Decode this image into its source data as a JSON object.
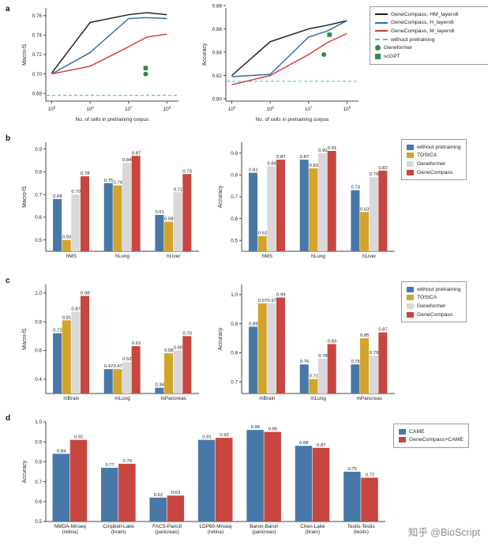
{
  "watermark": "知乎 @BioScript",
  "panel_letters": [
    "a",
    "b",
    "c",
    "d"
  ],
  "chart_data": [
    {
      "panel": "a",
      "type": "line",
      "ylabel": "Macro-f1",
      "xlabel": "No. of cells in pretraining corpus",
      "xscale": "log",
      "xlim": [
        70000,
        200000000
      ],
      "xtick_exponents": [
        5,
        6,
        7,
        8
      ],
      "ylim": [
        0.672,
        0.768
      ],
      "yticks": [
        0.68,
        0.7,
        0.72,
        0.74,
        0.76
      ],
      "ydec": 2,
      "series": [
        {
          "name": "GeneCompass, HM_layers6",
          "color": "#1a1a1a",
          "x": [
            100000,
            1000000,
            10000000,
            30000000,
            100000000
          ],
          "y": [
            0.701,
            0.753,
            0.761,
            0.763,
            0.761
          ]
        },
        {
          "name": "GeneCompass, H_layers6",
          "color": "#2b6aa6",
          "x": [
            100000,
            1000000,
            10000000,
            30000000,
            100000000
          ],
          "y": [
            0.7,
            0.722,
            0.757,
            0.758,
            0.757
          ]
        },
        {
          "name": "GeneCompass, M_layers6",
          "color": "#cf3a32",
          "x": [
            100000,
            1000000,
            10000000,
            30000000,
            100000000
          ],
          "y": [
            0.7,
            0.708,
            0.728,
            0.738,
            0.741
          ]
        }
      ],
      "baseline": {
        "name": "without pretraining",
        "color": "#4fc3d9",
        "value": 0.678
      },
      "points": [
        {
          "name": "Geneformer",
          "marker": "circle",
          "color": "#2f8c46",
          "x": 28000000,
          "y": 0.7
        },
        {
          "name": "scGPT",
          "marker": "square",
          "color": "#2f8c46",
          "x": 28000000,
          "y": 0.706
        }
      ]
    },
    {
      "panel": "a",
      "type": "line",
      "ylabel": "Accuracy",
      "xlabel": "No. of cells in pretraining corpus",
      "xscale": "log",
      "xlim": [
        70000,
        200000000
      ],
      "xtick_exponents": [
        5,
        6,
        7,
        8
      ],
      "ylim": [
        0.798,
        0.878
      ],
      "yticks": [
        0.8,
        0.82,
        0.84,
        0.86,
        0.88
      ],
      "ydec": 2,
      "series": [
        {
          "name": "GeneCompass, HM_layers6",
          "color": "#1a1a1a",
          "x": [
            100000,
            1000000,
            10000000,
            30000000,
            100000000
          ],
          "y": [
            0.82,
            0.849,
            0.86,
            0.863,
            0.867
          ]
        },
        {
          "name": "GeneCompass, H_layers6",
          "color": "#2b6aa6",
          "x": [
            100000,
            1000000,
            10000000,
            30000000,
            100000000
          ],
          "y": [
            0.819,
            0.821,
            0.853,
            0.858,
            0.867
          ]
        },
        {
          "name": "GeneCompass, M_layers6",
          "color": "#cf3a32",
          "x": [
            100000,
            1000000,
            10000000,
            30000000,
            100000000
          ],
          "y": [
            0.812,
            0.82,
            0.838,
            0.848,
            0.856
          ]
        }
      ],
      "baseline": {
        "name": "without pretraining",
        "color": "#4fc3d9",
        "value": 0.815
      },
      "points": [
        {
          "name": "Geneformer",
          "marker": "circle",
          "color": "#2f8c46",
          "x": 25000000,
          "y": 0.838
        },
        {
          "name": "scGPT",
          "marker": "square",
          "color": "#2f8c46",
          "x": 35000000,
          "y": 0.855
        }
      ]
    },
    {
      "panel": "b",
      "type": "bar",
      "ylabel": "Macro-f1",
      "categories": [
        "hMS",
        "hLung",
        "hLiver"
      ],
      "ylim": [
        0.45,
        0.93
      ],
      "yticks": [
        0.5,
        0.6,
        0.7,
        0.8,
        0.9
      ],
      "ydec": 1,
      "bar_labels": true,
      "series": [
        {
          "name": "without pretraining",
          "color": "#4878a8",
          "values": [
            0.68,
            0.75,
            0.61
          ]
        },
        {
          "name": "TOSICA",
          "color": "#d2a42c",
          "values": [
            0.5,
            0.74,
            0.58
          ]
        },
        {
          "name": "Geneformer",
          "color": "#d8d8d8",
          "values": [
            0.7,
            0.84,
            0.71
          ]
        },
        {
          "name": "GeneCompass",
          "color": "#c7463f",
          "values": [
            0.78,
            0.87,
            0.79
          ]
        }
      ]
    },
    {
      "panel": "b",
      "type": "bar",
      "ylabel": "Accuracy",
      "categories": [
        "hMS",
        "hLung",
        "hLiver"
      ],
      "ylim": [
        0.45,
        0.95
      ],
      "yticks": [
        0.5,
        0.6,
        0.7,
        0.8,
        0.9
      ],
      "ydec": 1,
      "bar_labels": true,
      "series": [
        {
          "name": "without pretraining",
          "color": "#4878a8",
          "values": [
            0.81,
            0.87,
            0.73
          ]
        },
        {
          "name": "TOSICA",
          "color": "#d2a42c",
          "values": [
            0.52,
            0.83,
            0.63
          ]
        },
        {
          "name": "Geneformer",
          "color": "#d8d8d8",
          "values": [
            0.84,
            0.9,
            0.79
          ]
        },
        {
          "name": "GeneCompass",
          "color": "#c7463f",
          "values": [
            0.87,
            0.91,
            0.82
          ]
        }
      ]
    },
    {
      "panel": "c",
      "type": "bar",
      "ylabel": "Macro-f1",
      "categories": [
        "mBrain",
        "mLung",
        "mPancreas"
      ],
      "ylim": [
        0.3,
        1.06
      ],
      "yticks": [
        0.4,
        0.6,
        0.8,
        1.0
      ],
      "ydec": 1,
      "bar_labels": true,
      "series": [
        {
          "name": "without pretraining",
          "color": "#4878a8",
          "values": [
            0.72,
            0.47,
            0.34
          ]
        },
        {
          "name": "TOSICA",
          "color": "#d2a42c",
          "values": [
            0.81,
            0.47,
            0.58
          ]
        },
        {
          "name": "Geneformer",
          "color": "#d8d8d8",
          "values": [
            0.87,
            0.52,
            0.6
          ]
        },
        {
          "name": "GeneCompass",
          "color": "#c7463f",
          "values": [
            0.98,
            0.63,
            0.7
          ]
        }
      ]
    },
    {
      "panel": "c",
      "type": "bar",
      "ylabel": "Accuracy",
      "categories": [
        "mBrain",
        "mLung",
        "mPancreas"
      ],
      "ylim": [
        0.66,
        1.035
      ],
      "yticks": [
        0.7,
        0.8,
        0.9,
        1.0
      ],
      "ydec": 1,
      "bar_labels": true,
      "series": [
        {
          "name": "without pretraining",
          "color": "#4878a8",
          "values": [
            0.89,
            0.76,
            0.76
          ]
        },
        {
          "name": "TOSICA",
          "color": "#d2a42c",
          "values": [
            0.97,
            0.71,
            0.85
          ]
        },
        {
          "name": "Geneformer",
          "color": "#d8d8d8",
          "values": [
            0.97,
            0.78,
            0.79
          ]
        },
        {
          "name": "GeneCompass",
          "color": "#c7463f",
          "values": [
            0.99,
            0.83,
            0.87
          ]
        }
      ]
    },
    {
      "panel": "d",
      "type": "bar",
      "ylabel": "Accuracy",
      "categories": [
        [
          "NMDA-Mnseq",
          "(retina)"
        ],
        [
          "Cmpbell-Lake",
          "(brain)"
        ],
        [
          "FACS-Panc8",
          "(pancreas)"
        ],
        [
          "LDP60-Mnseq",
          "(retina)"
        ],
        [
          "Baron-Baron",
          "(pancreas)"
        ],
        [
          "Chen-Lake",
          "(brain)"
        ],
        [
          "Testis-Testis",
          "(tesits)"
        ]
      ],
      "ylim": [
        0.5,
        1.0
      ],
      "yticks": [
        0.5,
        0.6,
        0.7,
        0.8,
        0.9,
        1.0
      ],
      "ydec": 1,
      "bar_labels": true,
      "series": [
        {
          "name": "CAME",
          "color": "#4878a8",
          "values": [
            0.84,
            0.77,
            0.62,
            0.91,
            0.96,
            0.88,
            0.75
          ]
        },
        {
          "name": "GeneCompass+CAME",
          "color": "#c7463f",
          "values": [
            0.91,
            0.79,
            0.63,
            0.92,
            0.95,
            0.87,
            0.72
          ]
        }
      ]
    }
  ],
  "legends": {
    "a": {
      "items": [
        {
          "label": "GeneCompass, HM_layers6",
          "type": "line",
          "color": "#1a1a1a"
        },
        {
          "label": "GeneCompass, H_layers6",
          "type": "line",
          "color": "#2b6aa6"
        },
        {
          "label": "GeneCompass, M_layers6",
          "type": "line",
          "color": "#cf3a32"
        },
        {
          "label": "without pretraining",
          "type": "dash",
          "color": "#4fc3d9"
        },
        {
          "label": "Geneformer",
          "type": "circle",
          "color": "#2f8c46"
        },
        {
          "label": "scGPT",
          "type": "square",
          "color": "#2f8c46"
        }
      ]
    },
    "b": {
      "items": [
        {
          "label": "without pretraining",
          "type": "rect",
          "color": "#4878a8"
        },
        {
          "label": "TOSICA",
          "type": "rect",
          "color": "#d2a42c"
        },
        {
          "label": "Geneformer",
          "type": "rect",
          "color": "#d8d8d8"
        },
        {
          "label": "GeneCompass",
          "type": "rect",
          "color": "#c7463f"
        }
      ]
    },
    "c": {
      "items": [
        {
          "label": "without pretraining",
          "type": "rect",
          "color": "#4878a8"
        },
        {
          "label": "TOSICA",
          "type": "rect",
          "color": "#d2a42c"
        },
        {
          "label": "Geneformer",
          "type": "rect",
          "color": "#d8d8d8"
        },
        {
          "label": "GeneCompass",
          "type": "rect",
          "color": "#c7463f"
        }
      ]
    },
    "d": {
      "items": [
        {
          "label": "CAME",
          "type": "rect",
          "color": "#4878a8"
        },
        {
          "label": "GeneCompass+CAME",
          "type": "rect",
          "color": "#c7463f"
        }
      ]
    }
  }
}
